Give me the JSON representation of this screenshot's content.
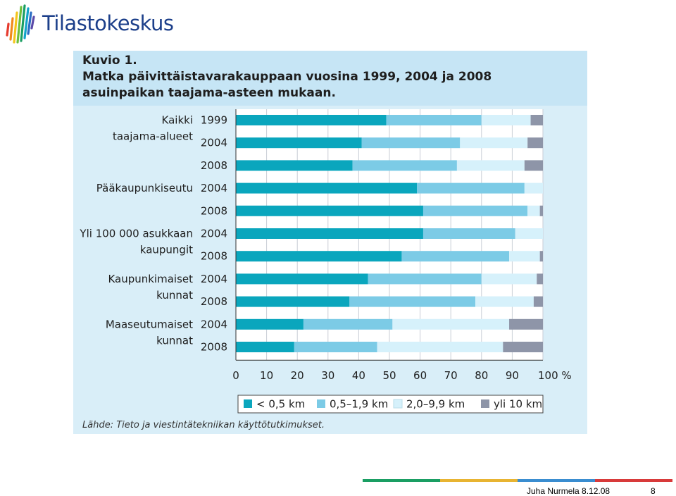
{
  "brand": {
    "name": "Tilastokeskus"
  },
  "figure": {
    "title_lines": [
      "Kuvio 1.",
      "Matka päivittäistavarakauppaan vuosina 1999, 2004 ja 2008",
      "asuinpaikan taajama-asteen mukaan."
    ],
    "source": "Lähde: Tieto ja viestintätekniikan käyttötutkimukset."
  },
  "chart_data": {
    "type": "bar",
    "orientation": "horizontal",
    "stacked": true,
    "groups": [
      {
        "label_lines": [
          "Kaikki",
          "taajama-alueet"
        ],
        "rows": [
          "1999",
          "2004",
          "2008"
        ]
      },
      {
        "label_lines": [
          "Pääkaupunkiseutu"
        ],
        "rows": [
          "2004",
          "2008"
        ]
      },
      {
        "label_lines": [
          "Yli 100 000 asukkaan",
          "kaupungit"
        ],
        "rows": [
          "2004",
          "2008"
        ]
      },
      {
        "label_lines": [
          "Kaupunkimaiset",
          "kunnat"
        ],
        "rows": [
          "2004",
          "2008"
        ]
      },
      {
        "label_lines": [
          "Maaseutumaiset",
          "kunnat"
        ],
        "rows": [
          "2004",
          "2008"
        ]
      }
    ],
    "series": [
      {
        "name": "< 0,5 km",
        "color": "#0aa6bd",
        "values": [
          49,
          41,
          38,
          59,
          61,
          61,
          54,
          43,
          37,
          22,
          19
        ]
      },
      {
        "name": "0,5–1,9 km",
        "color": "#7ccbe6",
        "values": [
          31,
          32,
          34,
          35,
          34,
          30,
          35,
          37,
          41,
          29,
          27
        ]
      },
      {
        "name": "2,0–9,9 km",
        "color": "#d6f1fb",
        "values": [
          16,
          22,
          22,
          6,
          4,
          9,
          10,
          18,
          19,
          38,
          41
        ]
      },
      {
        "name": "yli 10 km",
        "color": "#8e95a8",
        "values": [
          4,
          5,
          6,
          0,
          1,
          0,
          1,
          2,
          3,
          11,
          13
        ]
      }
    ],
    "xlim": [
      0,
      100
    ],
    "xticks": [
      "0",
      "10",
      "20",
      "30",
      "40",
      "50",
      "60",
      "70",
      "80",
      "90",
      "100 %"
    ],
    "grid": true,
    "legend": "bottom"
  },
  "footer": {
    "text": "Juha Nurmela 8.12.08",
    "page": "8",
    "line_colors": [
      "#1a9e63",
      "#e8b431",
      "#3a8dd0",
      "#d83a3a"
    ]
  }
}
